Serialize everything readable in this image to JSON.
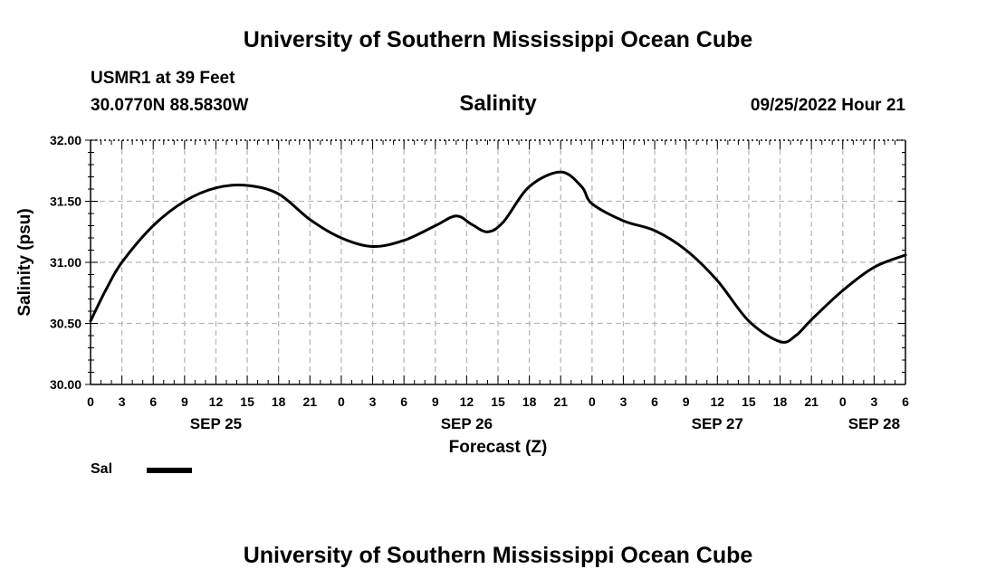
{
  "header": {
    "title": "University of Southern Mississippi Ocean Cube",
    "station": "USMR1 at 39 Feet",
    "coords": "30.0770N  88.5830W",
    "chart_title": "Salinity",
    "date": "09/25/2022 Hour 21"
  },
  "footer": {
    "title": "University of Southern Mississippi Ocean Cube"
  },
  "legend": {
    "label": "Sal"
  },
  "chart_data": {
    "type": "line",
    "title": "Salinity",
    "xlabel": "Forecast (Z)",
    "ylabel": "Salinity (psu)",
    "xlim": [
      0,
      78
    ],
    "ylim": [
      30.0,
      32.0
    ],
    "y_ticks": [
      "30.00",
      "30.50",
      "31.00",
      "31.50",
      "32.00"
    ],
    "x_tick_labels": [
      "0",
      "3",
      "6",
      "9",
      "12",
      "15",
      "18",
      "21",
      "0",
      "3",
      "6",
      "9",
      "12",
      "15",
      "18",
      "21",
      "0",
      "3",
      "6",
      "9",
      "12",
      "15",
      "18",
      "21",
      "0",
      "3",
      "6"
    ],
    "date_labels": [
      {
        "x": 12,
        "label": "SEP 25"
      },
      {
        "x": 36,
        "label": "SEP 26"
      },
      {
        "x": 60,
        "label": "SEP 27"
      },
      {
        "x": 75,
        "label": "SEP 28"
      }
    ],
    "grid": true,
    "series": [
      {
        "name": "Sal",
        "color": "#000000",
        "x": [
          0,
          1.5,
          3,
          6,
          9,
          12,
          15,
          18,
          21,
          24,
          27,
          30,
          33,
          35,
          36.5,
          38,
          39.5,
          42,
          45,
          47,
          48,
          51,
          54,
          57,
          60,
          63,
          66,
          67.5,
          69,
          72,
          75,
          78
        ],
        "y": [
          30.52,
          30.78,
          31.0,
          31.3,
          31.5,
          31.61,
          31.63,
          31.56,
          31.35,
          31.2,
          31.13,
          31.18,
          31.3,
          31.38,
          31.31,
          31.25,
          31.33,
          31.62,
          31.74,
          31.62,
          31.48,
          31.34,
          31.26,
          31.1,
          30.85,
          30.52,
          30.35,
          30.4,
          30.53,
          30.77,
          30.96,
          31.06
        ]
      }
    ]
  }
}
